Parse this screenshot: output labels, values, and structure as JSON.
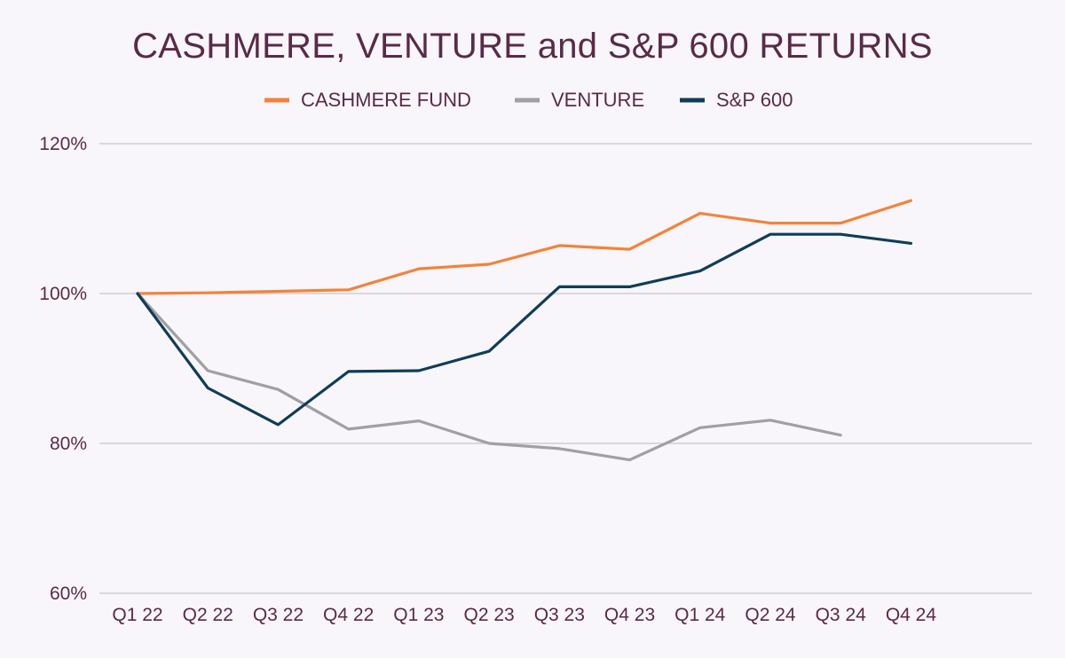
{
  "chart_data": {
    "type": "line",
    "title": "CASHMERE, VENTURE and S&P 600 RETURNS",
    "xlabel": "",
    "ylabel": "",
    "categories": [
      "Q1 22",
      "Q2 22",
      "Q3 22",
      "Q4 22",
      "Q1 23",
      "Q2 23",
      "Q3 23",
      "Q4 23",
      "Q1 24",
      "Q2 24",
      "Q3 24",
      "Q4 24"
    ],
    "ylim": [
      60,
      120
    ],
    "yticks": [
      60,
      80,
      100,
      120
    ],
    "ytick_labels": [
      "60%",
      "80%",
      "100%",
      "120%"
    ],
    "grid": true,
    "legend_position": "top",
    "series": [
      {
        "name": "CASHMERE FUND",
        "color": "#f5823a",
        "values": [
          100,
          100.1,
          100.3,
          100.5,
          103.3,
          103.9,
          106.4,
          105.9,
          110.7,
          109.4,
          109.4,
          112.4
        ]
      },
      {
        "name": "VENTURE",
        "color": "#a09fa3",
        "values": [
          100,
          89.7,
          87.2,
          81.9,
          83.0,
          80.0,
          79.3,
          77.8,
          82.1,
          83.1,
          81.1,
          null
        ]
      },
      {
        "name": "S&P 600",
        "color": "#0f3d58",
        "values": [
          100,
          87.4,
          82.5,
          89.6,
          89.7,
          92.3,
          100.9,
          100.9,
          103.0,
          107.9,
          107.9,
          106.7
        ]
      }
    ]
  }
}
